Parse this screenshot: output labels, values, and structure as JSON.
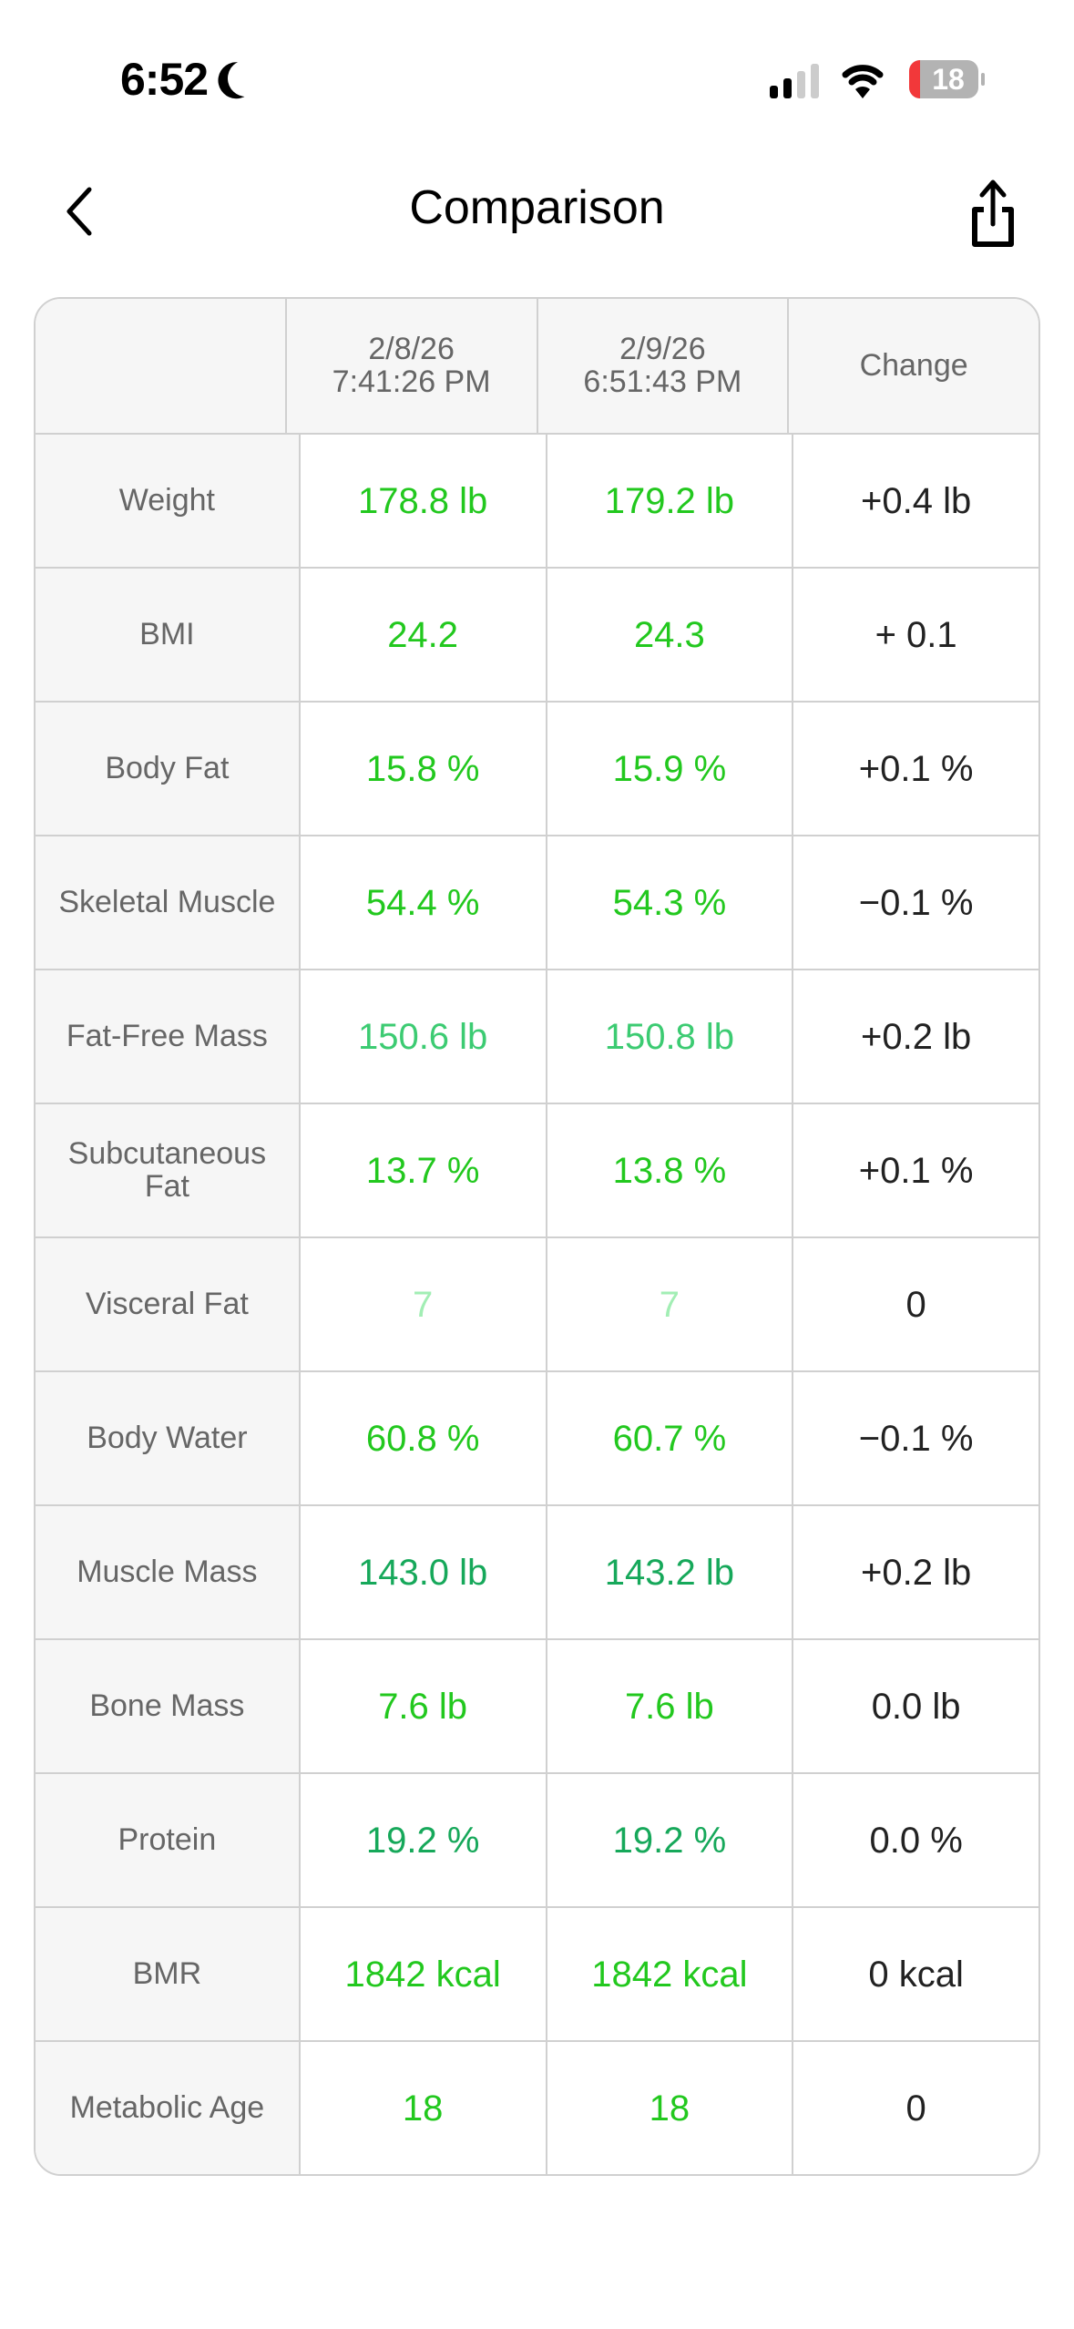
{
  "status_bar": {
    "time": "6:52",
    "battery": "18",
    "icons": [
      "moon-icon",
      "signal-icon",
      "wifi-icon",
      "battery-icon"
    ]
  },
  "nav": {
    "title": "Comparison",
    "back_icon": "chevron-left-icon",
    "share_icon": "share-icon"
  },
  "table": {
    "headers": [
      "",
      "2/8/26\n7:41:26 PM",
      "2/9/26\n6:51:43 PM",
      "Change"
    ],
    "rows": [
      {
        "label": "Weight",
        "a": "178.8 lb",
        "b": "179.2 lb",
        "change": "+0.4 lb",
        "color": "#22c81e"
      },
      {
        "label": "BMI",
        "a": "24.2",
        "b": "24.3",
        "change": "+ 0.1",
        "color": "#22c81e"
      },
      {
        "label": "Body Fat",
        "a": "15.8 %",
        "b": "15.9 %",
        "change": "+0.1 %",
        "color": "#22c81e"
      },
      {
        "label": "Skeletal Muscle",
        "a": "54.4 %",
        "b": "54.3 %",
        "change": "−0.1 %",
        "color": "#22c81e"
      },
      {
        "label": "Fat-Free Mass",
        "a": "150.6 lb",
        "b": "150.8 lb",
        "change": "+0.2 lb",
        "color": "#3ccb72"
      },
      {
        "label": "Subcutaneous Fat",
        "a": "13.7 %",
        "b": "13.8 %",
        "change": "+0.1 %",
        "color": "#22c81e"
      },
      {
        "label": "Visceral Fat",
        "a": "7",
        "b": "7",
        "change": "0",
        "color": "#a2eeb4"
      },
      {
        "label": "Body Water",
        "a": "60.8 %",
        "b": "60.7 %",
        "change": "−0.1 %",
        "color": "#22c81e"
      },
      {
        "label": "Muscle Mass",
        "a": "143.0 lb",
        "b": "143.2 lb",
        "change": "+0.2 lb",
        "color": "#16a85a"
      },
      {
        "label": "Bone Mass",
        "a": "7.6 lb",
        "b": "7.6 lb",
        "change": "0.0 lb",
        "color": "#22c81e"
      },
      {
        "label": "Protein",
        "a": "19.2 %",
        "b": "19.2 %",
        "change": "0.0 %",
        "color": "#16a85a"
      },
      {
        "label": "BMR",
        "a": "1842 kcal",
        "b": "1842 kcal",
        "change": "0 kcal",
        "color": "#22c81e"
      },
      {
        "label": "Metabolic Age",
        "a": "18",
        "b": "18",
        "change": "0",
        "color": "#22c81e"
      }
    ]
  }
}
